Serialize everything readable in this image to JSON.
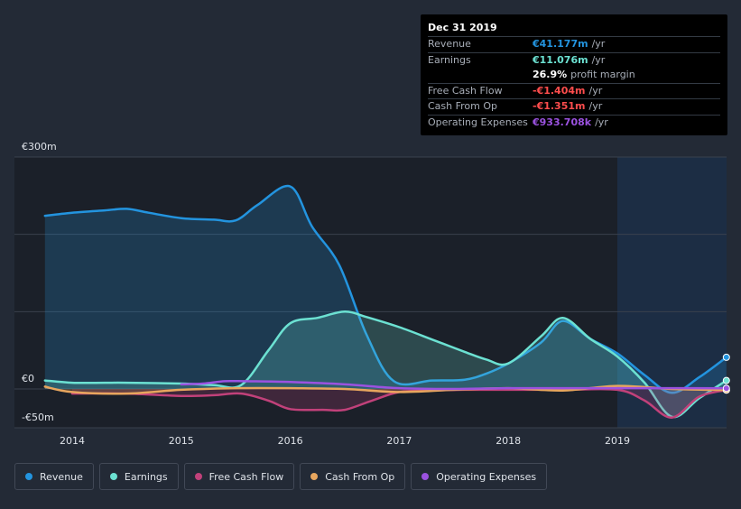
{
  "chart_data": {
    "type": "area",
    "currency_unit": "€m",
    "y_axis_labels": [
      "€300m",
      "€0",
      "-€50m"
    ],
    "ylim": [
      -50,
      300
    ],
    "xlim": [
      2013.7,
      2020.0
    ],
    "x_tick_labels": [
      "2014",
      "2015",
      "2016",
      "2017",
      "2018",
      "2019"
    ],
    "x_ticks": [
      2014,
      2015,
      2016,
      2017,
      2018,
      2019
    ],
    "highlight_start": 2019.0,
    "series": [
      {
        "name": "Revenue",
        "color": "#2394df",
        "fill": true,
        "x": [
          2013.75,
          2014.0,
          2014.3,
          2014.5,
          2014.7,
          2015.0,
          2015.3,
          2015.5,
          2015.7,
          2016.0,
          2016.2,
          2016.45,
          2016.7,
          2016.95,
          2017.3,
          2017.6,
          2017.8,
          2018.0,
          2018.3,
          2018.5,
          2018.75,
          2019.0,
          2019.25,
          2019.5,
          2019.75,
          2020.0
        ],
        "values": [
          224,
          228,
          231,
          233,
          228,
          221,
          219,
          218,
          238,
          262,
          210,
          160,
          70,
          10,
          11,
          12,
          20,
          33,
          60,
          88,
          65,
          46,
          18,
          -5,
          15,
          41
        ]
      },
      {
        "name": "Earnings",
        "color": "#6ce1d2",
        "fill": true,
        "x": [
          2013.75,
          2014.0,
          2014.3,
          2014.5,
          2015.0,
          2015.3,
          2015.55,
          2015.8,
          2016.0,
          2016.25,
          2016.5,
          2016.7,
          2017.0,
          2017.3,
          2017.6,
          2017.8,
          2018.0,
          2018.3,
          2018.5,
          2018.75,
          2019.0,
          2019.25,
          2019.5,
          2019.75,
          2020.0
        ],
        "values": [
          11,
          8,
          8,
          8,
          7,
          5,
          5,
          50,
          85,
          92,
          100,
          93,
          80,
          64,
          48,
          38,
          33,
          68,
          92,
          65,
          42,
          8,
          -36,
          -12,
          11
        ]
      },
      {
        "name": "Free Cash Flow",
        "color": "#c1417a",
        "fill": true,
        "x": [
          2014.0,
          2014.5,
          2015.0,
          2015.3,
          2015.55,
          2015.8,
          2016.0,
          2016.3,
          2016.5,
          2016.75,
          2017.0,
          2017.3,
          2017.6,
          2018.0,
          2018.5,
          2019.0,
          2019.25,
          2019.5,
          2019.75,
          2020.0
        ],
        "values": [
          -6,
          -6,
          -9,
          -8,
          -6,
          -15,
          -26,
          -27,
          -27,
          -15,
          -4,
          -2,
          -1,
          -1,
          -1,
          -1,
          -15,
          -37,
          -10,
          -1.4
        ]
      },
      {
        "name": "Cash From Op",
        "color": "#e8a65e",
        "fill": true,
        "x": [
          2013.75,
          2014.0,
          2014.5,
          2015.0,
          2015.5,
          2016.0,
          2016.5,
          2017.0,
          2017.5,
          2018.0,
          2018.5,
          2019.0,
          2019.5,
          2020.0
        ],
        "values": [
          3,
          -4,
          -6,
          -1,
          1,
          1,
          0,
          -4,
          -1,
          1,
          -2,
          4,
          0,
          -1.35
        ]
      },
      {
        "name": "Operating Expenses",
        "color": "#9b52e0",
        "fill": false,
        "x": [
          2015.0,
          2015.2,
          2015.4,
          2015.6,
          2016.0,
          2016.5,
          2017.0,
          2017.5,
          2018.0,
          2018.5,
          2019.0,
          2019.5,
          2020.0
        ],
        "values": [
          6,
          7,
          10,
          10,
          9,
          6,
          1,
          0,
          1,
          1,
          1,
          1,
          0.93
        ]
      }
    ],
    "tooltip": {
      "date": "Dec 31 2019",
      "rows": [
        {
          "label": "Revenue",
          "value": "€41.177m",
          "unit": "/yr",
          "color": "#2394df"
        },
        {
          "label": "Earnings",
          "value": "€11.076m",
          "unit": "/yr",
          "color": "#6ce1d2"
        },
        {
          "label": "",
          "value": "26.9%",
          "unit": "profit margin",
          "color": "#ffffff"
        },
        {
          "label": "Free Cash Flow",
          "value": "-€1.404m",
          "unit": "/yr",
          "color": "#ff4d4d"
        },
        {
          "label": "Cash From Op",
          "value": "-€1.351m",
          "unit": "/yr",
          "color": "#ff4d4d"
        },
        {
          "label": "Operating Expenses",
          "value": "€933.708k",
          "unit": "/yr",
          "color": "#9b52e0"
        }
      ]
    },
    "legend": [
      {
        "label": "Revenue",
        "color": "#2394df"
      },
      {
        "label": "Earnings",
        "color": "#6ce1d2"
      },
      {
        "label": "Free Cash Flow",
        "color": "#c1417a"
      },
      {
        "label": "Cash From Op",
        "color": "#e8a65e"
      },
      {
        "label": "Operating Expenses",
        "color": "#9b52e0"
      }
    ]
  }
}
